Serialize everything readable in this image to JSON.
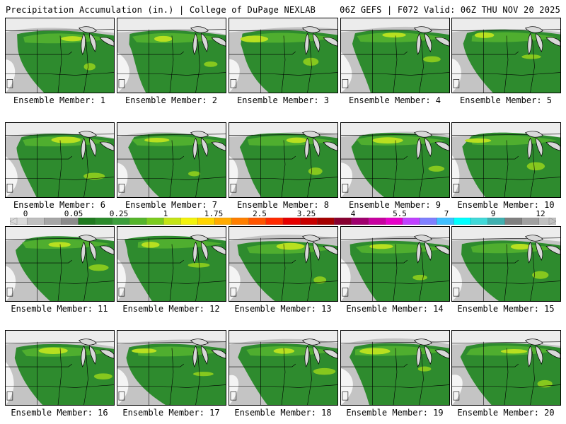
{
  "header": {
    "left": "Precipitation Accumulation (in.) | College of DuPage NEXLAB",
    "right": "06Z GEFS | F072 Valid: 06Z THU NOV 20 2025"
  },
  "colorbar": {
    "labels": [
      "0",
      "0.05",
      "0.25",
      "1",
      "1.75",
      "2.5",
      "3.25",
      "4",
      "5.5",
      "7",
      "9",
      "12"
    ],
    "colors": [
      "#d9d9d9",
      "#bfbfbf",
      "#a6a6a6",
      "#8c8c8c",
      "#1f7a1f",
      "#2b8a2b",
      "#3c9e3c",
      "#55b52b",
      "#7ccc1e",
      "#c4e416",
      "#f2f20c",
      "#ffd400",
      "#ffaa00",
      "#ff7f00",
      "#ff5500",
      "#ff2a00",
      "#e60000",
      "#c80000",
      "#a50000",
      "#870030",
      "#a0006e",
      "#c800a0",
      "#e600c8",
      "#c040ff",
      "#7f7fff",
      "#40bfff",
      "#00ffff",
      "#40d9d9",
      "#40b0b0",
      "#808080",
      "#a0a0a0",
      "#c0c0c0"
    ]
  },
  "panels": [
    {
      "caption": "Ensemble Member: 1"
    },
    {
      "caption": "Ensemble Member: 2"
    },
    {
      "caption": "Ensemble Member: 3"
    },
    {
      "caption": "Ensemble Member: 4"
    },
    {
      "caption": "Ensemble Member: 5"
    },
    {
      "caption": "Ensemble Member: 6"
    },
    {
      "caption": "Ensemble Member: 7"
    },
    {
      "caption": "Ensemble Member: 8"
    },
    {
      "caption": "Ensemble Member: 9"
    },
    {
      "caption": "Ensemble Member: 10"
    },
    {
      "caption": "Ensemble Member: 11"
    },
    {
      "caption": "Ensemble Member: 12"
    },
    {
      "caption": "Ensemble Member: 13"
    },
    {
      "caption": "Ensemble Member: 14"
    },
    {
      "caption": "Ensemble Member: 15"
    },
    {
      "caption": "Ensemble Member: 16"
    },
    {
      "caption": "Ensemble Member: 17"
    },
    {
      "caption": "Ensemble Member: 18"
    },
    {
      "caption": "Ensemble Member: 19"
    },
    {
      "caption": "Ensemble Member: 20"
    }
  ]
}
